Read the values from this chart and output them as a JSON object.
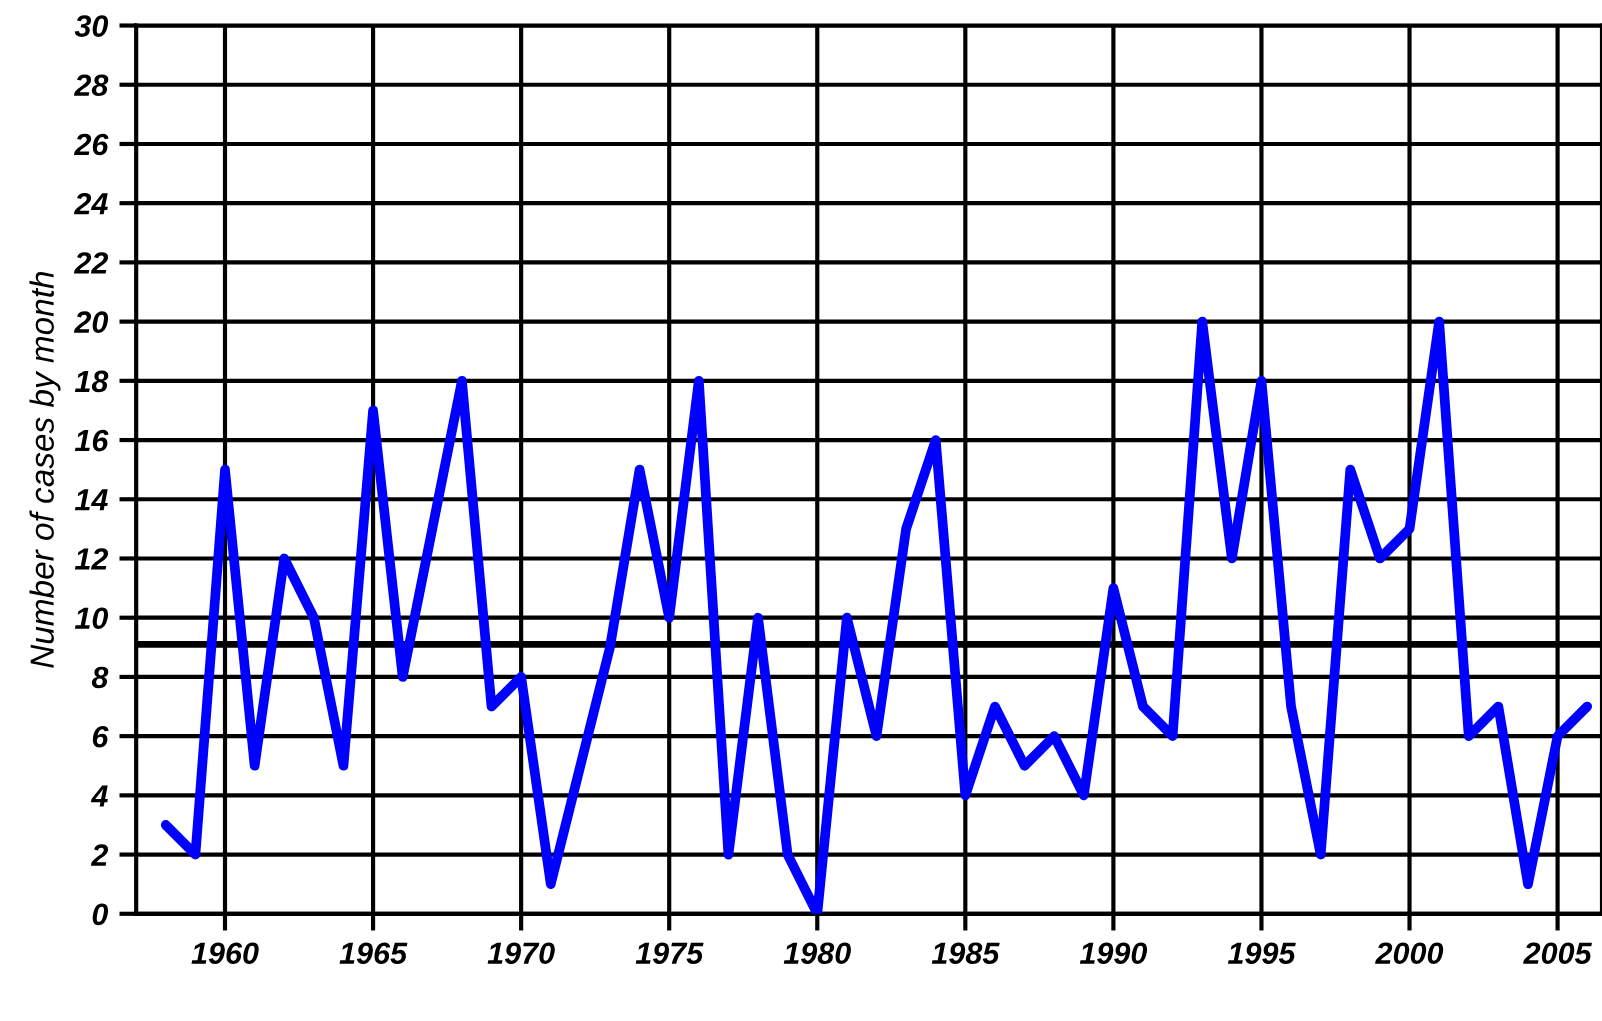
{
  "chart_data": {
    "type": "line",
    "ylabel": "Number of cases by month",
    "x": [
      1958,
      1959,
      1960,
      1961,
      1962,
      1963,
      1964,
      1965,
      1966,
      1967,
      1968,
      1969,
      1970,
      1971,
      1972,
      1973,
      1974,
      1975,
      1976,
      1977,
      1978,
      1979,
      1980,
      1981,
      1982,
      1983,
      1984,
      1985,
      1986,
      1987,
      1988,
      1989,
      1990,
      1991,
      1992,
      1993,
      1994,
      1995,
      1996,
      1997,
      1998,
      1999,
      2000,
      2001,
      2002,
      2003,
      2004,
      2005,
      2006
    ],
    "series": [
      {
        "color": "#0000ff",
        "values": [
          3,
          2,
          15,
          5,
          12,
          10,
          5,
          17,
          8,
          13,
          18,
          7,
          8,
          1,
          5,
          9,
          15,
          10,
          18,
          2,
          10,
          2,
          0,
          10,
          6,
          13,
          16,
          4,
          7,
          5,
          6,
          4,
          11,
          7,
          6,
          20,
          12,
          18,
          7,
          2,
          15,
          12,
          13,
          20,
          6,
          7,
          1,
          6,
          7
        ]
      }
    ],
    "xlim": [
      1957,
      2006.5
    ],
    "xticks": [
      1960,
      1965,
      1970,
      1975,
      1980,
      1985,
      1990,
      1995,
      2000,
      2005
    ],
    "ylim": [
      0,
      30
    ],
    "yticks": [
      0,
      2,
      4,
      6,
      8,
      10,
      12,
      14,
      16,
      18,
      20,
      22,
      24,
      26,
      28,
      30
    ],
    "grid": true,
    "legend": false,
    "marker": "none",
    "line_style": "solid",
    "ref_lines": [
      {
        "axis": "y",
        "value": 9.1,
        "color": "#000000"
      }
    ]
  }
}
